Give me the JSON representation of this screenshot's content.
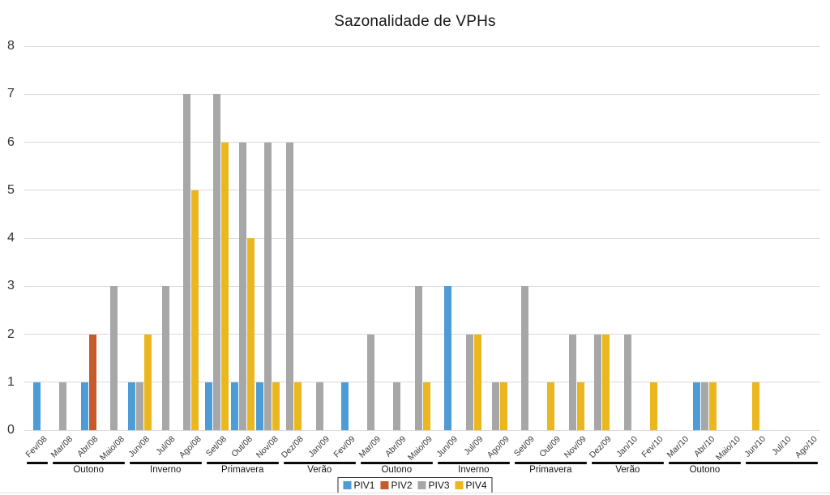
{
  "chart_data": {
    "type": "bar",
    "title": "Sazonalidade de VPHs",
    "xlabel": "",
    "ylabel": "",
    "ylim": [
      0,
      8
    ],
    "yticks": [
      0,
      1,
      2,
      3,
      4,
      5,
      6,
      7,
      8
    ],
    "grid": true,
    "legend_position": "bottom-center",
    "categories": [
      "Fev/08",
      "Mar/08",
      "Abr/08",
      "Maio/08",
      "Jun/08",
      "Jul/08",
      "Ago/08",
      "Set/08",
      "Out/08",
      "Nov/08",
      "Dez/08",
      "Jan/09",
      "Fev/09",
      "Mar/09",
      "Abr/09",
      "Maio/09",
      "Jun/09",
      "Jul/09",
      "Ago/09",
      "Set/09",
      "Out/09",
      "Nov/09",
      "Dez/09",
      "Jan/10",
      "Fev/10",
      "Mar/10",
      "Abr/10",
      "Maio/10",
      "Jun/10",
      "Jul/10",
      "Ago/10"
    ],
    "series": [
      {
        "name": "PIV1",
        "color": "#4e9cd5",
        "values": [
          1,
          0,
          1,
          0,
          1,
          0,
          0,
          1,
          1,
          1,
          0,
          0,
          1,
          0,
          0,
          0,
          3,
          0,
          0,
          0,
          0,
          0,
          0,
          0,
          0,
          0,
          1,
          0,
          0,
          0,
          0
        ]
      },
      {
        "name": "PIV2",
        "color": "#c65a2b",
        "values": [
          0,
          0,
          2,
          0,
          0,
          0,
          0,
          0,
          0,
          0,
          0,
          0,
          0,
          0,
          0,
          0,
          0,
          0,
          0,
          0,
          0,
          0,
          0,
          0,
          0,
          0,
          0,
          0,
          0,
          0,
          0
        ]
      },
      {
        "name": "PIV3",
        "color": "#a7a7a7",
        "values": [
          0,
          1,
          0,
          3,
          1,
          3,
          7,
          7,
          6,
          6,
          6,
          1,
          0,
          2,
          1,
          3,
          0,
          2,
          1,
          3,
          0,
          2,
          2,
          2,
          0,
          0,
          1,
          0,
          0,
          0,
          0
        ]
      },
      {
        "name": "PIV4",
        "color": "#ebb71e",
        "values": [
          0,
          0,
          0,
          0,
          2,
          0,
          5,
          6,
          4,
          1,
          1,
          0,
          0,
          0,
          0,
          1,
          0,
          2,
          1,
          0,
          1,
          1,
          2,
          0,
          1,
          0,
          1,
          0,
          1,
          0,
          0
        ]
      }
    ],
    "seasons": [
      {
        "label": "",
        "start": 0,
        "end": 0
      },
      {
        "label": "Outono",
        "start": 1,
        "end": 3
      },
      {
        "label": "Inverno",
        "start": 4,
        "end": 6
      },
      {
        "label": "Primavera",
        "start": 7,
        "end": 9
      },
      {
        "label": "Verão",
        "start": 10,
        "end": 12
      },
      {
        "label": "Outono",
        "start": 13,
        "end": 15
      },
      {
        "label": "Inverno",
        "start": 16,
        "end": 18
      },
      {
        "label": "Primavera",
        "start": 19,
        "end": 21
      },
      {
        "label": "Verão",
        "start": 22,
        "end": 24
      },
      {
        "label": "Outono",
        "start": 25,
        "end": 27
      },
      {
        "label": "",
        "start": 28,
        "end": 30
      }
    ]
  }
}
